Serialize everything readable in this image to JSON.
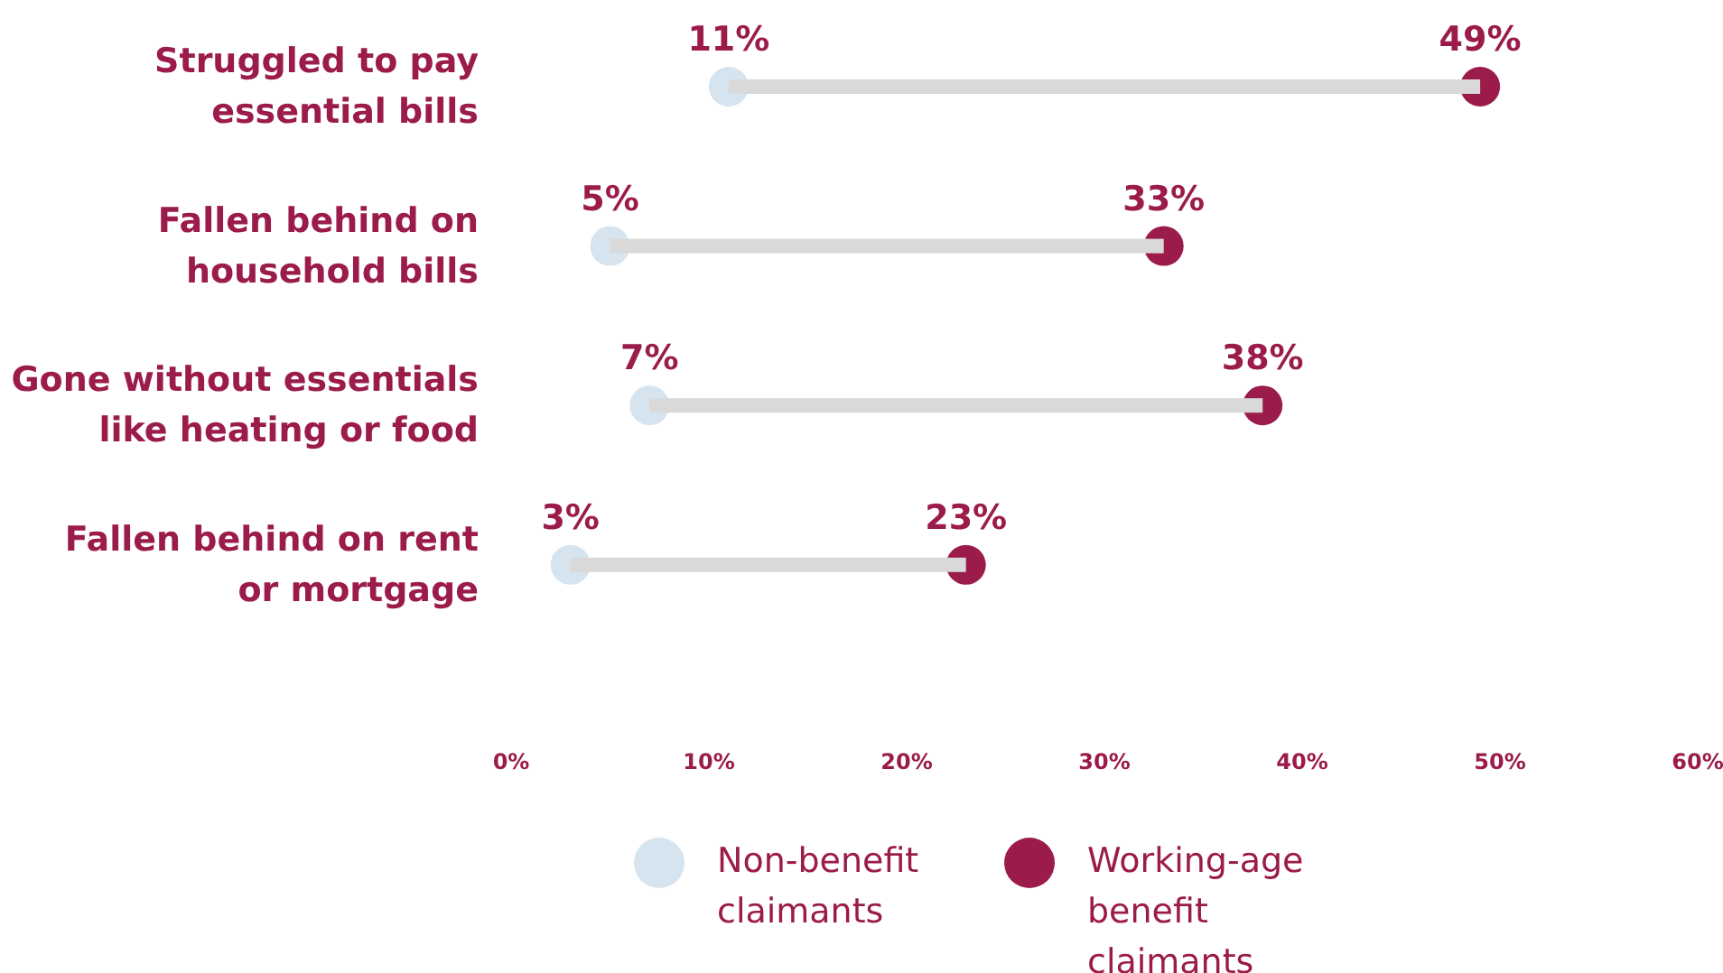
{
  "chart_data": {
    "type": "scatter",
    "orientation": "horizontal",
    "categories": [
      "Struggled to pay essential bills",
      "Fallen behind on household bills",
      "Gone without essentials like heating or food",
      "Fallen behind on rent or mortgage"
    ],
    "series": [
      {
        "type": "bar",
        "color": "#d9d9d9",
        "base": [
          11,
          5,
          7,
          3
        ],
        "values": [
          38,
          28,
          31,
          20
        ]
      },
      {
        "name": "Non-benefit claimants",
        "color": "#d6e4ef",
        "values": [
          11,
          5,
          7,
          3
        ],
        "value_labels": [
          "11%",
          "5%",
          "7%",
          "3%"
        ]
      },
      {
        "name": "Working-age benefit claimants",
        "color": "#9b1b4a",
        "values": [
          49,
          33,
          38,
          23
        ],
        "value_labels": [
          "49%",
          "33%",
          "38%",
          "23%"
        ]
      }
    ],
    "xlim": [
      0,
      60
    ],
    "xticks": [
      {
        "value": 0,
        "label": "0%"
      },
      {
        "value": 10,
        "label": "10%"
      },
      {
        "value": 20,
        "label": "20%"
      },
      {
        "value": 30,
        "label": "30%"
      },
      {
        "value": 40,
        "label": "40%"
      },
      {
        "value": 50,
        "label": "50%"
      },
      {
        "value": 60,
        "label": "60%"
      }
    ],
    "grid": false,
    "legend": "bottom",
    "marker": "circle"
  }
}
